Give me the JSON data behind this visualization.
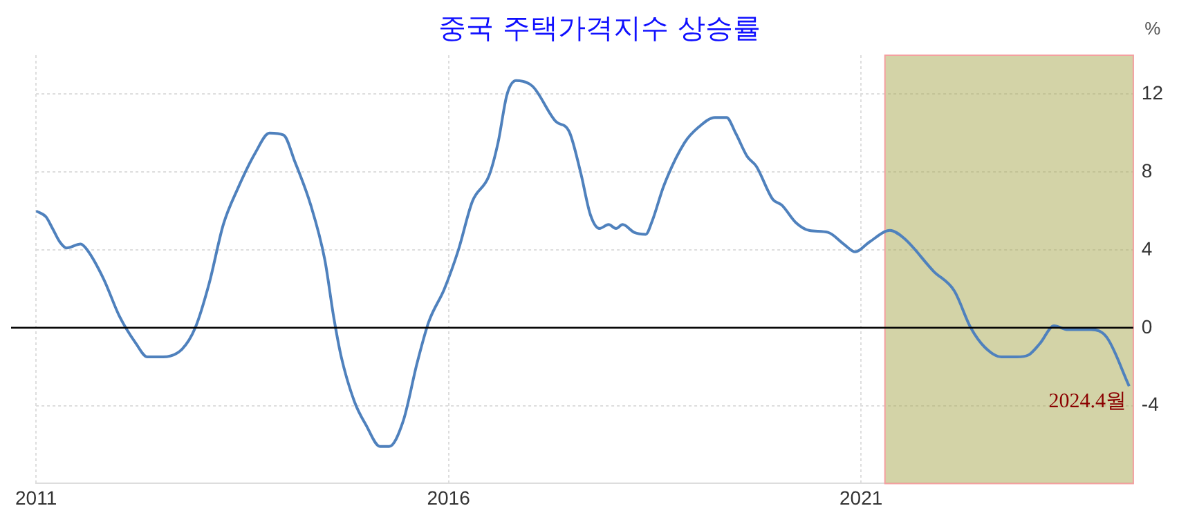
{
  "chart_data": {
    "type": "line",
    "title": "중국 주택가격지수 상승률",
    "ylabel": "%",
    "x": [
      2011.0,
      2011.12,
      2011.2,
      2011.29,
      2011.37,
      2011.54,
      2011.62,
      2011.82,
      2012.01,
      2012.21,
      2012.35,
      2012.54,
      2012.77,
      2012.93,
      2013.1,
      2013.27,
      2013.44,
      2013.66,
      2013.83,
      2014.0,
      2014.14,
      2014.33,
      2014.5,
      2014.61,
      2014.7,
      2014.86,
      2015.0,
      2015.17,
      2015.28,
      2015.45,
      2015.62,
      2015.76,
      2015.95,
      2016.12,
      2016.29,
      2016.49,
      2016.6,
      2016.71,
      2016.82,
      2017.02,
      2017.3,
      2017.46,
      2017.6,
      2017.72,
      2017.83,
      2017.94,
      2018.03,
      2018.11,
      2018.25,
      2018.39,
      2018.47,
      2018.61,
      2018.86,
      2019.03,
      2019.23,
      2019.37,
      2019.48,
      2019.62,
      2019.73,
      2019.93,
      2020.04,
      2020.21,
      2020.37,
      2020.6,
      2020.79,
      2020.93,
      2021.1,
      2021.35,
      2021.52,
      2021.88,
      2022.13,
      2022.33,
      2022.5,
      2022.7,
      2022.89,
      2023.03,
      2023.17,
      2023.34,
      2023.51,
      2023.79,
      2023.98,
      2024.25
    ],
    "series": [
      {
        "color": "#4f81bd",
        "values": [
          6.0,
          5.7,
          5.1,
          4.4,
          4.1,
          4.3,
          4.0,
          2.5,
          0.6,
          -0.8,
          -1.5,
          -1.5,
          -1.1,
          0.0,
          2.3,
          5.3,
          7.1,
          9.0,
          10.0,
          9.9,
          8.5,
          6.3,
          3.5,
          0.5,
          -1.5,
          -3.8,
          -5.0,
          -6.1,
          -6.1,
          -4.8,
          -1.8,
          0.3,
          2.0,
          4.0,
          6.5,
          7.8,
          9.5,
          12.0,
          12.7,
          12.4,
          10.6,
          10.1,
          8.0,
          5.8,
          5.1,
          5.3,
          5.1,
          5.3,
          4.9,
          4.8,
          5.5,
          7.3,
          9.5,
          10.3,
          10.8,
          10.8,
          10.0,
          8.8,
          8.3,
          6.6,
          6.3,
          5.4,
          5.0,
          4.9,
          4.3,
          3.9,
          4.4,
          5.0,
          4.6,
          2.9,
          1.9,
          0.0,
          -1.0,
          -1.5,
          -1.5,
          -1.4,
          -0.8,
          0.1,
          -0.1,
          -0.1,
          -0.5,
          -3.0
        ]
      }
    ],
    "xlim": [
      2011,
      2024.3
    ],
    "xticks": [
      2011,
      2016,
      2021
    ],
    "ylim": [
      -8,
      14
    ],
    "yticks": [
      -4,
      0,
      4,
      8,
      12
    ],
    "ref_lines": [
      {
        "axis": "y",
        "value": 0,
        "color": "#000000"
      }
    ],
    "bands": [
      {
        "axis": "x",
        "from": 2021.29,
        "to": 2024.3,
        "color": "#a8a850"
      }
    ],
    "annotations": [
      {
        "text": "2024.4월",
        "x": 2024.25,
        "y": -3.0
      }
    ],
    "grid": true,
    "legend": false,
    "marker": "none",
    "line_style": "solid"
  }
}
